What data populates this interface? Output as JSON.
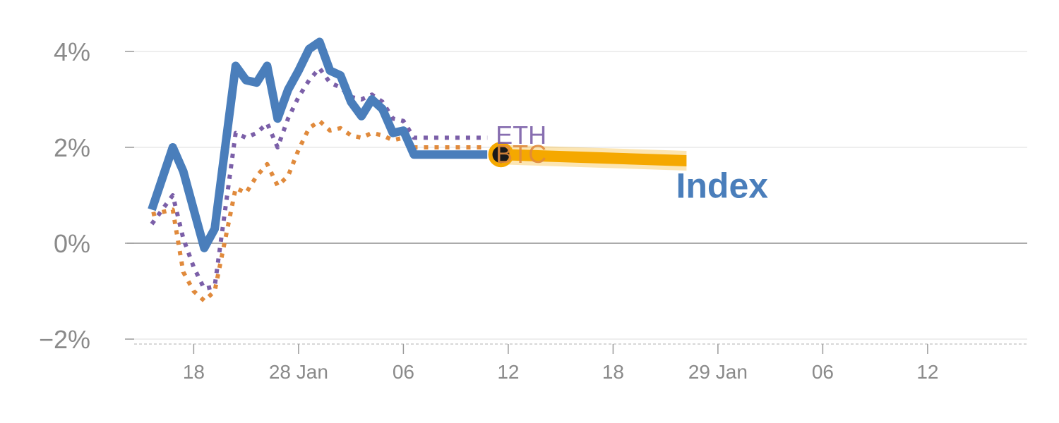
{
  "chart_data": {
    "type": "line",
    "x_start": "2025-01-14",
    "y_unit": "%",
    "ylim": [
      -2,
      4
    ],
    "y_ticks": [
      {
        "value": 4,
        "label": "4%"
      },
      {
        "value": 2,
        "label": "2%"
      },
      {
        "value": 0,
        "label": "0%"
      },
      {
        "value": -2,
        "label": "−2%"
      }
    ],
    "x_ticks": [
      {
        "day": 4,
        "label": "18"
      },
      {
        "day": 14,
        "label": "28 Jan"
      },
      {
        "day": 24,
        "label": "06"
      },
      {
        "day": 34,
        "label": "12"
      },
      {
        "day": 44,
        "label": "18"
      },
      {
        "day": 54,
        "label": "29 Jan"
      },
      {
        "day": 64,
        "label": "06"
      },
      {
        "day": 74,
        "label": "12"
      }
    ],
    "grid": true,
    "series": [
      {
        "name": "Index",
        "color": "#4a7ebb",
        "style": "solid",
        "x": [
          0,
          2,
          3,
          4,
          5,
          6,
          8,
          9,
          10,
          11,
          12,
          13,
          14,
          15,
          16,
          17,
          18,
          19,
          20,
          21,
          22,
          23,
          24,
          25,
          26,
          27,
          28,
          29,
          30,
          31,
          32,
          33,
          34,
          35,
          36,
          36.5
        ],
        "y": [
          0.7,
          2.0,
          1.5,
          0.7,
          -0.1,
          0.3,
          3.7,
          3.4,
          3.35,
          3.7,
          2.6,
          3.2,
          3.6,
          4.05,
          4.2,
          3.6,
          3.5,
          2.95,
          2.65,
          3.0,
          2.8,
          2.3,
          2.35,
          1.85,
          1.85,
          1.85,
          1.85,
          1.85,
          1.85,
          1.85,
          1.85,
          1.85,
          1.85,
          1.85,
          1.85,
          1.85
        ]
      },
      {
        "name": "ETH",
        "color": "#7b5fa8",
        "style": "dotted",
        "x": [
          0,
          2,
          3,
          4,
          5,
          6,
          8,
          9,
          10,
          11,
          12,
          13,
          14,
          15,
          16,
          17,
          18,
          19,
          20,
          21,
          22,
          23,
          24,
          25,
          26,
          27,
          28,
          29,
          30,
          31,
          32,
          33,
          34,
          35,
          36,
          36.5
        ],
        "y": [
          0.4,
          1.0,
          0.1,
          -0.5,
          -0.95,
          -0.9,
          2.3,
          2.2,
          2.3,
          2.5,
          2.0,
          2.6,
          3.05,
          3.4,
          3.65,
          3.35,
          3.25,
          3.05,
          3.0,
          3.1,
          2.95,
          2.6,
          2.55,
          2.2,
          2.2,
          2.2,
          2.2,
          2.2,
          2.2,
          2.2,
          2.2,
          2.2,
          2.2,
          2.2,
          2.2,
          2.2
        ]
      },
      {
        "name": "BTC",
        "color": "#e08a3c",
        "style": "dotted",
        "x": [
          0,
          2,
          3,
          4,
          5,
          6,
          8,
          9,
          10,
          11,
          12,
          13,
          14,
          15,
          16,
          17,
          18,
          19,
          20,
          21,
          22,
          23,
          24,
          25,
          26,
          27,
          28,
          29,
          30,
          31,
          32,
          33,
          34,
          35,
          36,
          36.5
        ],
        "y": [
          0.6,
          0.7,
          -0.6,
          -1.0,
          -1.2,
          -1.0,
          1.15,
          1.05,
          1.4,
          1.65,
          1.2,
          1.4,
          1.95,
          2.4,
          2.55,
          2.35,
          2.4,
          2.25,
          2.2,
          2.3,
          2.25,
          2.15,
          2.2,
          2.0,
          2.0,
          2.0,
          2.0,
          2.0,
          2.0,
          2.0,
          2.0,
          2.0,
          2.0,
          2.0,
          2.0,
          2.0
        ]
      }
    ],
    "forecast": {
      "color": "#f5a800",
      "x": [
        33.3,
        51
      ],
      "y": [
        1.85,
        1.72
      ]
    },
    "marker": {
      "x": 33.3,
      "y": 1.85,
      "fill": "#1a1a1a",
      "ring": "#f5a800"
    },
    "labels": [
      {
        "text": "ETH",
        "x": 32.8,
        "y": 2.25,
        "color": "#7b5fa8"
      },
      {
        "text": "BTC",
        "x": 32.8,
        "y": 1.85,
        "color": "#e08a3c"
      },
      {
        "text": "Index",
        "x": 50,
        "y": 0.95,
        "color": "#4a7ebb"
      }
    ]
  }
}
